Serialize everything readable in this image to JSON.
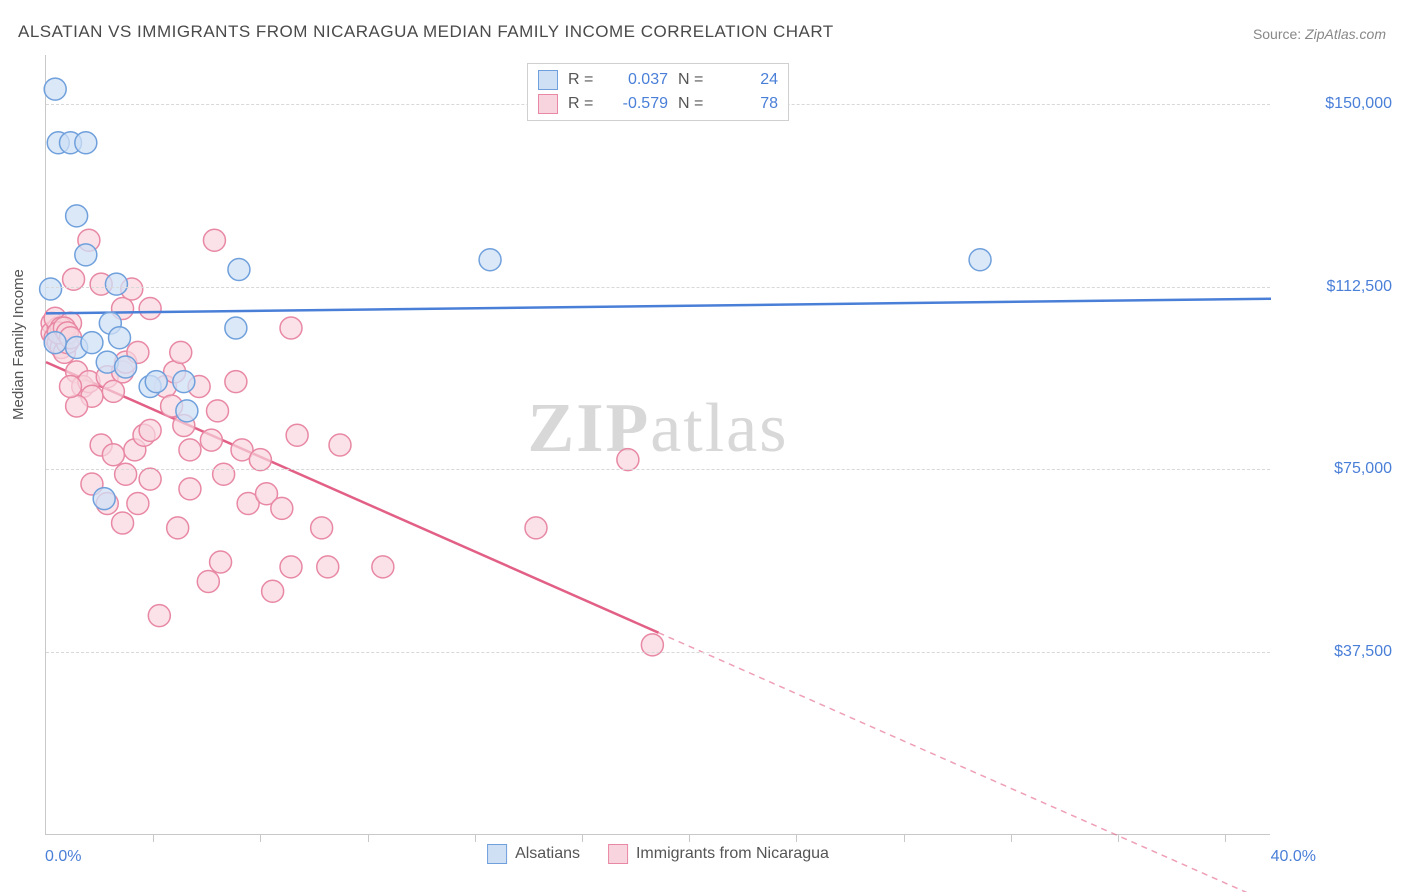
{
  "title": "ALSATIAN VS IMMIGRANTS FROM NICARAGUA MEDIAN FAMILY INCOME CORRELATION CHART",
  "source_label": "Source:",
  "source_value": "ZipAtlas.com",
  "ylabel": "Median Family Income",
  "watermark_bold": "ZIP",
  "watermark_rest": "atlas",
  "chart": {
    "type": "scatter",
    "background_color": "#ffffff",
    "grid_color": "#d8d8d8",
    "axis_color": "#c8c8c8",
    "tick_label_color": "#4a7fd8",
    "xlim": [
      0,
      40
    ],
    "ylim": [
      0,
      160000
    ],
    "x_start_label": "0.0%",
    "x_end_label": "40.0%",
    "y_ticks": [
      {
        "value": 37500,
        "label": "$37,500"
      },
      {
        "value": 75000,
        "label": "$75,000"
      },
      {
        "value": 112500,
        "label": "$112,500"
      },
      {
        "value": 150000,
        "label": "$150,000"
      }
    ],
    "x_tick_positions": [
      3.5,
      7,
      10.5,
      14,
      17.5,
      21,
      24.5,
      28,
      31.5,
      35,
      38.5
    ],
    "legend_top": [
      {
        "color_fill": "#cfe0f5",
        "color_stroke": "#6fa0dc",
        "r_label": "R =",
        "r_val": "0.037",
        "n_label": "N =",
        "n_val": "24"
      },
      {
        "color_fill": "#f8d5de",
        "color_stroke": "#e888a4",
        "r_label": "R =",
        "r_val": "-0.579",
        "n_label": "N =",
        "n_val": "78"
      }
    ],
    "legend_bottom": [
      {
        "color_fill": "#cfe0f5",
        "color_stroke": "#6fa0dc",
        "label": "Alsatians"
      },
      {
        "color_fill": "#f8d5de",
        "color_stroke": "#e888a4",
        "label": "Immigrants from Nicaragua"
      }
    ],
    "series": [
      {
        "name": "alsatians",
        "marker_radius": 11,
        "fill": "#cfe0f5",
        "stroke": "#6fa0dc",
        "stroke_width": 1.5,
        "fill_opacity": 0.75,
        "trend": {
          "x1": 0,
          "y1": 107000,
          "x2": 40,
          "y2": 110000,
          "color": "#4a7fd8",
          "width": 2.5,
          "solid_to_x": 40
        },
        "points": [
          [
            0.15,
            112000
          ],
          [
            0.3,
            153000
          ],
          [
            0.3,
            101000
          ],
          [
            0.4,
            142000
          ],
          [
            0.8,
            142000
          ],
          [
            1.0,
            127000
          ],
          [
            1.3,
            119000
          ],
          [
            1.3,
            142000
          ],
          [
            2.3,
            113000
          ],
          [
            2.1,
            105000
          ],
          [
            1.0,
            100000
          ],
          [
            1.5,
            101000
          ],
          [
            2.4,
            102000
          ],
          [
            2.0,
            97000
          ],
          [
            2.6,
            96000
          ],
          [
            3.4,
            92000
          ],
          [
            3.6,
            93000
          ],
          [
            4.5,
            93000
          ],
          [
            4.6,
            87000
          ],
          [
            1.9,
            69000
          ],
          [
            6.3,
            116000
          ],
          [
            6.2,
            104000
          ],
          [
            14.5,
            118000
          ],
          [
            30.5,
            118000
          ]
        ]
      },
      {
        "name": "nicaragua",
        "marker_radius": 11,
        "fill": "#f8d5de",
        "stroke": "#e888a4",
        "stroke_width": 1.5,
        "fill_opacity": 0.7,
        "trend": {
          "x1": 0,
          "y1": 97000,
          "x2": 40,
          "y2": -14000,
          "color": "#e25f86",
          "width": 2.5,
          "solid_to_x": 20
        },
        "points": [
          [
            0.2,
            105000
          ],
          [
            0.2,
            103000
          ],
          [
            0.3,
            102000
          ],
          [
            0.4,
            104000
          ],
          [
            0.4,
            101000
          ],
          [
            0.5,
            103000
          ],
          [
            0.5,
            100000
          ],
          [
            0.6,
            102000
          ],
          [
            0.6,
            99000
          ],
          [
            0.7,
            101000
          ],
          [
            0.3,
            106000
          ],
          [
            0.8,
            105000
          ],
          [
            0.5,
            104000
          ],
          [
            0.4,
            103000
          ],
          [
            0.6,
            104000
          ],
          [
            0.7,
            103000
          ],
          [
            0.8,
            102000
          ],
          [
            0.9,
            114000
          ],
          [
            1.4,
            122000
          ],
          [
            1.8,
            113000
          ],
          [
            2.5,
            108000
          ],
          [
            2.8,
            112000
          ],
          [
            3.4,
            108000
          ],
          [
            1.0,
            95000
          ],
          [
            1.2,
            92000
          ],
          [
            1.4,
            93000
          ],
          [
            1.5,
            90000
          ],
          [
            1.0,
            88000
          ],
          [
            0.8,
            92000
          ],
          [
            2.0,
            94000
          ],
          [
            2.5,
            95000
          ],
          [
            2.2,
            91000
          ],
          [
            2.6,
            97000
          ],
          [
            3.0,
            99000
          ],
          [
            5.5,
            122000
          ],
          [
            3.9,
            92000
          ],
          [
            4.1,
            88000
          ],
          [
            4.2,
            95000
          ],
          [
            4.4,
            99000
          ],
          [
            4.5,
            84000
          ],
          [
            4.7,
            79000
          ],
          [
            5.0,
            92000
          ],
          [
            5.4,
            81000
          ],
          [
            5.6,
            87000
          ],
          [
            5.8,
            74000
          ],
          [
            6.2,
            93000
          ],
          [
            6.4,
            79000
          ],
          [
            6.6,
            68000
          ],
          [
            7.0,
            77000
          ],
          [
            7.2,
            70000
          ],
          [
            8.0,
            104000
          ],
          [
            8.2,
            82000
          ],
          [
            1.8,
            80000
          ],
          [
            2.2,
            78000
          ],
          [
            2.6,
            74000
          ],
          [
            2.9,
            79000
          ],
          [
            3.2,
            82000
          ],
          [
            3.4,
            73000
          ],
          [
            3.0,
            68000
          ],
          [
            3.4,
            83000
          ],
          [
            1.5,
            72000
          ],
          [
            2.0,
            68000
          ],
          [
            2.5,
            64000
          ],
          [
            4.3,
            63000
          ],
          [
            4.7,
            71000
          ],
          [
            7.7,
            67000
          ],
          [
            5.3,
            52000
          ],
          [
            5.7,
            56000
          ],
          [
            7.4,
            50000
          ],
          [
            8.0,
            55000
          ],
          [
            9.2,
            55000
          ],
          [
            11.0,
            55000
          ],
          [
            9.0,
            63000
          ],
          [
            9.6,
            80000
          ],
          [
            19.0,
            77000
          ],
          [
            16.0,
            63000
          ],
          [
            19.8,
            39000
          ],
          [
            3.7,
            45000
          ]
        ]
      }
    ]
  }
}
